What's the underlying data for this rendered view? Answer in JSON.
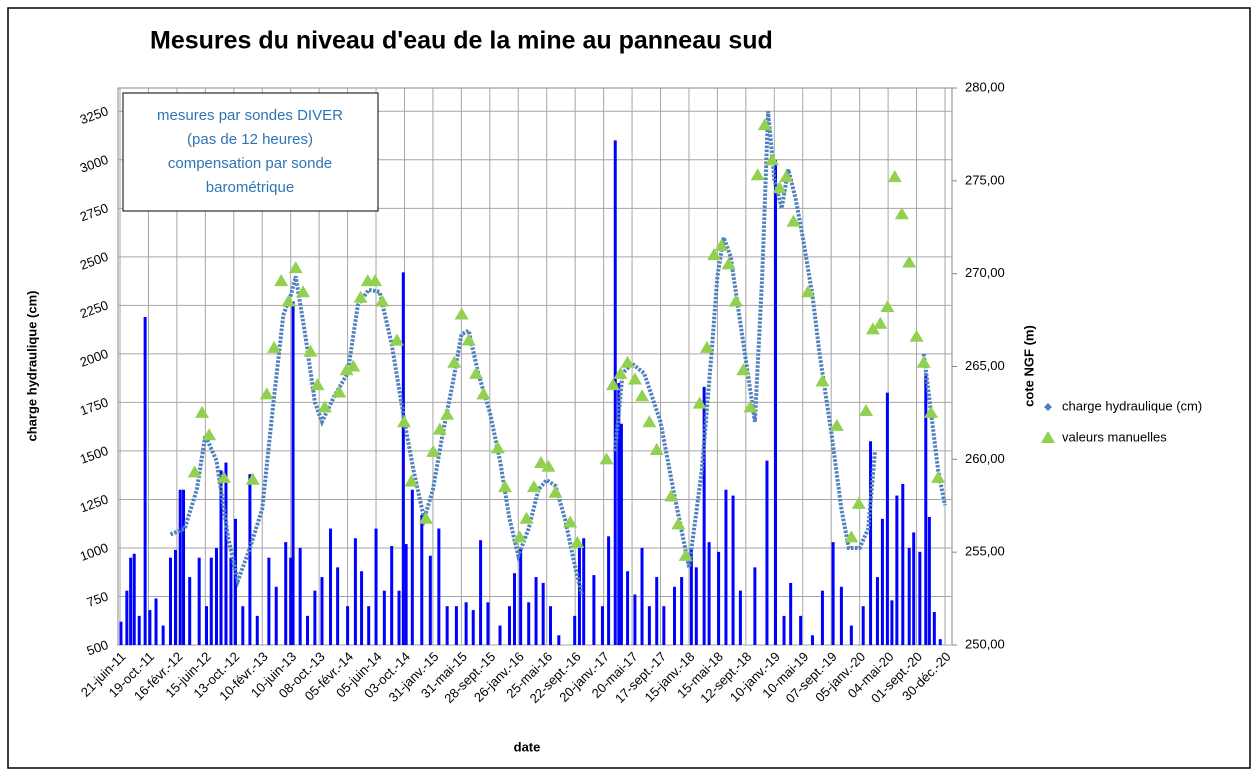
{
  "chart_data": {
    "type": "combo",
    "title": "Mesures du niveau d'eau de la mine au panneau sud",
    "annotation": [
      "mesures par sondes DIVER",
      "(pas de 12 heures)",
      "compensation par sonde",
      "barométrique"
    ],
    "x_label": "date",
    "y_label": "charge hydraulique (cm)",
    "y2_label": "cote NGF (m)",
    "legend": "right",
    "grid": true,
    "xlim": [
      "2011-06-21",
      "2020-12-30"
    ],
    "xticks": [
      {
        "value": "2011-06-21",
        "label": "21-juin-11"
      },
      {
        "value": "2011-10-19",
        "label": "19-oct.-11"
      },
      {
        "value": "2012-02-16",
        "label": "16-févr.-12"
      },
      {
        "value": "2012-06-15",
        "label": "15-juin-12"
      },
      {
        "value": "2012-10-13",
        "label": "13-oct.-12"
      },
      {
        "value": "2013-02-10",
        "label": "10-févr.-13"
      },
      {
        "value": "2013-06-10",
        "label": "10-juin-13"
      },
      {
        "value": "2013-10-08",
        "label": "08-oct.-13"
      },
      {
        "value": "2014-02-05",
        "label": "05-févr.-14"
      },
      {
        "value": "2014-06-05",
        "label": "05-juin-14"
      },
      {
        "value": "2014-10-03",
        "label": "03-oct.-14"
      },
      {
        "value": "2015-01-31",
        "label": "31-janv.-15"
      },
      {
        "value": "2015-05-31",
        "label": "31-mai-15"
      },
      {
        "value": "2015-09-28",
        "label": "28-sept.-15"
      },
      {
        "value": "2016-01-26",
        "label": "26-janv.-16"
      },
      {
        "value": "2016-05-25",
        "label": "25-mai-16"
      },
      {
        "value": "2016-09-22",
        "label": "22-sept.-16"
      },
      {
        "value": "2017-01-20",
        "label": "20-janv.-17"
      },
      {
        "value": "2017-05-20",
        "label": "20-mai-17"
      },
      {
        "value": "2017-09-17",
        "label": "17-sept.-17"
      },
      {
        "value": "2018-01-15",
        "label": "15-janv.-18"
      },
      {
        "value": "2018-05-15",
        "label": "15-mai-18"
      },
      {
        "value": "2018-09-12",
        "label": "12-sept.-18"
      },
      {
        "value": "2019-01-10",
        "label": "10-janv.-19"
      },
      {
        "value": "2019-05-10",
        "label": "10-mai-19"
      },
      {
        "value": "2019-09-07",
        "label": "07-sept.-19"
      },
      {
        "value": "2020-01-05",
        "label": "05-janv.-20"
      },
      {
        "value": "2020-05-04",
        "label": "04-mai-20"
      },
      {
        "value": "2020-09-01",
        "label": "01-sept.-20"
      },
      {
        "value": "2020-12-30",
        "label": "30-déc.-20"
      }
    ],
    "ylim": [
      500,
      3370
    ],
    "yticks": [
      500,
      750,
      1000,
      1250,
      1500,
      1750,
      2000,
      2250,
      2500,
      2750,
      3000,
      3250
    ],
    "y2lim": [
      250,
      280
    ],
    "y2ticks": [
      {
        "value": 250,
        "label": "250,00"
      },
      {
        "value": 255,
        "label": "255,00"
      },
      {
        "value": 260,
        "label": "260,00"
      },
      {
        "value": 265,
        "label": "265,00"
      },
      {
        "value": 270,
        "label": "270,00"
      },
      {
        "value": 275,
        "label": "275,00"
      },
      {
        "value": 280,
        "label": "280,00"
      }
    ],
    "bars": {
      "color": "#0000ff",
      "x": [
        "2011-06-25",
        "2011-07-20",
        "2011-08-05",
        "2011-08-20",
        "2011-09-10",
        "2011-10-05",
        "2011-10-25",
        "2011-11-20",
        "2011-12-20",
        "2012-01-20",
        "2012-02-10",
        "2012-03-01",
        "2012-03-15",
        "2012-04-10",
        "2012-05-20",
        "2012-06-20",
        "2012-07-10",
        "2012-08-01",
        "2012-08-20",
        "2012-09-10",
        "2012-10-01",
        "2012-10-20",
        "2012-11-20",
        "2012-12-20",
        "2013-01-20",
        "2013-03-10",
        "2013-04-10",
        "2013-05-20",
        "2013-06-10",
        "2013-06-20",
        "2013-07-20",
        "2013-08-20",
        "2013-09-20",
        "2013-10-20",
        "2013-11-25",
        "2013-12-25",
        "2014-02-05",
        "2014-03-10",
        "2014-04-05",
        "2014-05-05",
        "2014-06-05",
        "2014-07-10",
        "2014-08-10",
        "2014-09-10",
        "2014-09-28",
        "2014-10-10",
        "2014-11-05",
        "2014-12-15",
        "2015-01-20",
        "2015-02-25",
        "2015-04-01",
        "2015-05-10",
        "2015-06-20",
        "2015-07-20",
        "2015-08-20",
        "2015-09-20",
        "2015-11-10",
        "2015-12-20",
        "2016-01-10",
        "2016-02-05",
        "2016-03-10",
        "2016-04-10",
        "2016-05-10",
        "2016-06-10",
        "2016-07-15",
        "2016-09-20",
        "2016-10-10",
        "2016-10-28",
        "2016-12-10",
        "2017-01-15",
        "2017-02-10",
        "2017-03-10",
        "2017-03-25",
        "2017-04-05",
        "2017-05-01",
        "2017-06-01",
        "2017-07-01",
        "2017-08-01",
        "2017-09-01",
        "2017-10-01",
        "2017-11-15",
        "2017-12-15",
        "2018-01-25",
        "2018-02-15",
        "2018-03-20",
        "2018-04-10",
        "2018-05-20",
        "2018-06-20",
        "2018-07-20",
        "2018-08-20",
        "2018-10-20",
        "2018-12-10",
        "2019-01-15",
        "2019-02-20",
        "2019-03-20",
        "2019-05-01",
        "2019-06-20",
        "2019-08-01",
        "2019-09-15",
        "2019-10-20",
        "2019-12-01",
        "2020-01-20",
        "2020-02-20",
        "2020-03-20",
        "2020-04-10",
        "2020-05-01",
        "2020-05-20",
        "2020-06-10",
        "2020-07-05",
        "2020-08-01",
        "2020-08-20",
        "2020-09-15",
        "2020-10-10",
        "2020-10-25",
        "2020-11-15",
        "2020-12-10"
      ],
      "values": [
        620,
        780,
        950,
        970,
        650,
        2190,
        680,
        740,
        600,
        950,
        990,
        1300,
        1300,
        850,
        950,
        700,
        950,
        1000,
        1400,
        1440,
        950,
        1150,
        700,
        1380,
        650,
        950,
        800,
        1030,
        950,
        2270,
        1000,
        650,
        780,
        850,
        1100,
        900,
        700,
        1050,
        880,
        700,
        1100,
        780,
        1010,
        780,
        2420,
        1020,
        1300,
        1170,
        960,
        1100,
        700,
        700,
        720,
        680,
        1040,
        720,
        600,
        700,
        870,
        1000,
        720,
        850,
        820,
        700,
        550,
        650,
        1000,
        1050,
        860,
        700,
        1060,
        3100,
        1850,
        1640,
        880,
        760,
        1000,
        700,
        850,
        700,
        800,
        850,
        1000,
        900,
        1830,
        1030,
        980,
        1300,
        1270,
        780,
        900,
        1450,
        3000,
        650,
        820,
        650,
        550,
        780,
        1030,
        800,
        600,
        700,
        1550,
        850,
        1150,
        1800,
        730,
        1270,
        1330,
        1000,
        1080,
        980,
        1900,
        1160,
        670,
        530
      ]
    },
    "series": [
      {
        "name": "charge hydraulique (cm)",
        "color": "#4f81bd",
        "marker": "diamond",
        "x": [
          "2012-01-20",
          "2012-03-20",
          "2012-05-10",
          "2012-06-15",
          "2012-08-01",
          "2012-09-20",
          "2012-10-30",
          "2012-12-20",
          "2013-02-10",
          "2013-03-25",
          "2013-05-10",
          "2013-06-10",
          "2013-07-01",
          "2013-08-10",
          "2013-09-20",
          "2013-10-20",
          "2013-12-10",
          "2014-02-05",
          "2014-03-20",
          "2014-05-05",
          "2014-06-20",
          "2014-08-10",
          "2014-10-03",
          "2014-11-10",
          "2014-12-25",
          "2015-01-31",
          "2015-03-15",
          "2015-04-25",
          "2015-05-31",
          "2015-07-01",
          "2015-08-10",
          "2015-09-28",
          "2015-11-10",
          "2015-12-20",
          "2016-01-26",
          "2016-03-10",
          "2016-04-20",
          "2016-05-25",
          "2016-07-01",
          "2016-08-10",
          "2016-09-22",
          "2016-10-20",
          "2016-12-20",
          "2017-03-10",
          "2017-04-10",
          "2017-05-20",
          "2017-07-10",
          "2017-09-17",
          "2017-11-10",
          "2018-01-15",
          "2018-03-10",
          "2018-04-20",
          "2018-05-15",
          "2018-06-10",
          "2018-07-10",
          "2018-08-15",
          "2018-09-20",
          "2018-10-20",
          "2018-11-20",
          "2018-12-15",
          "2019-01-10",
          "2019-02-10",
          "2019-03-10",
          "2019-04-10",
          "2019-05-10",
          "2019-06-20",
          "2019-07-20",
          "2019-09-07",
          "2019-10-20",
          "2019-11-20",
          "2020-01-05",
          "2020-02-10",
          "2020-03-10",
          "2020-06-01",
          "2020-10-01",
          "2020-11-01",
          "2020-12-01",
          "2020-12-30"
        ],
        "values": [
          1070,
          1100,
          1300,
          1580,
          1450,
          1050,
          830,
          1000,
          1200,
          1700,
          2200,
          2300,
          2400,
          2100,
          1750,
          1650,
          1780,
          1900,
          2250,
          2330,
          2320,
          2050,
          1650,
          1400,
          1150,
          1300,
          1600,
          1850,
          2100,
          2120,
          1900,
          1700,
          1450,
          1150,
          960,
          1100,
          1300,
          1350,
          1320,
          1150,
          900,
          760,
          null,
          1500,
          1900,
          1950,
          1900,
          1650,
          1300,
          900,
          1400,
          2000,
          2400,
          2600,
          2500,
          2200,
          1900,
          1650,
          2400,
          3250,
          2900,
          2750,
          2950,
          2800,
          2600,
          2300,
          2000,
          1600,
          1200,
          1000,
          1000,
          1100,
          1500,
          null,
          2000,
          1700,
          1400,
          1220
        ]
      },
      {
        "name": "valeurs manuelles",
        "color": "#92d050",
        "marker": "triangle",
        "axis": "y2",
        "x": [
          "2012-05-01",
          "2012-06-01",
          "2012-07-01",
          "2012-09-01",
          "2013-01-01",
          "2013-03-01",
          "2013-04-01",
          "2013-05-01",
          "2013-06-01",
          "2013-07-01",
          "2013-08-01",
          "2013-09-01",
          "2013-10-01",
          "2013-11-01",
          "2014-01-01",
          "2014-02-01",
          "2014-03-01",
          "2014-04-01",
          "2014-05-01",
          "2014-06-01",
          "2014-07-01",
          "2014-09-01",
          "2014-10-01",
          "2014-11-01",
          "2015-01-01",
          "2015-02-01",
          "2015-03-01",
          "2015-04-01",
          "2015-05-01",
          "2015-06-01",
          "2015-07-01",
          "2015-08-01",
          "2015-09-01",
          "2015-11-01",
          "2015-12-01",
          "2016-02-01",
          "2016-03-01",
          "2016-04-01",
          "2016-05-01",
          "2016-06-01",
          "2016-07-01",
          "2016-09-01",
          "2016-10-01",
          "2017-02-01",
          "2017-03-01",
          "2017-04-01",
          "2017-05-01",
          "2017-06-01",
          "2017-07-01",
          "2017-08-01",
          "2017-09-01",
          "2017-11-01",
          "2017-12-01",
          "2018-01-01",
          "2018-03-01",
          "2018-04-01",
          "2018-05-01",
          "2018-06-01",
          "2018-07-01",
          "2018-08-01",
          "2018-09-01",
          "2018-10-01",
          "2018-11-01",
          "2018-12-01",
          "2019-01-01",
          "2019-02-01",
          "2019-03-01",
          "2019-04-01",
          "2019-06-01",
          "2019-08-01",
          "2019-10-01",
          "2019-12-01",
          "2020-01-01",
          "2020-02-01",
          "2020-03-01",
          "2020-04-01",
          "2020-05-01",
          "2020-06-01",
          "2020-07-01",
          "2020-08-01",
          "2020-09-01",
          "2020-10-01",
          "2020-11-01",
          "2020-12-01"
        ],
        "values": [
          259.3,
          262.5,
          261.3,
          259,
          258.9,
          263.5,
          266,
          269.6,
          268.5,
          270.3,
          269,
          265.8,
          264,
          262.8,
          263.6,
          264.8,
          265,
          268.7,
          269.6,
          269.6,
          268.5,
          266.4,
          262,
          258.8,
          256.8,
          260.4,
          261.6,
          262.4,
          265.2,
          267.8,
          266.4,
          264.6,
          263.5,
          260.6,
          258.5,
          255.8,
          256.8,
          258.5,
          259.8,
          259.6,
          258.2,
          256.6,
          255.5,
          260,
          264,
          264.6,
          265.2,
          264.3,
          263.4,
          262,
          260.5,
          258,
          256.5,
          254.8,
          263,
          266,
          271,
          271.5,
          270.5,
          268.5,
          264.8,
          262.8,
          275.3,
          278,
          276.1,
          274.6,
          275.2,
          272.8,
          269,
          264.2,
          261.8,
          255.8,
          257.6,
          262.6,
          267,
          267.3,
          268.2,
          275.2,
          273.2,
          270.6,
          266.6,
          265.2,
          262.5,
          259
        ]
      }
    ]
  }
}
